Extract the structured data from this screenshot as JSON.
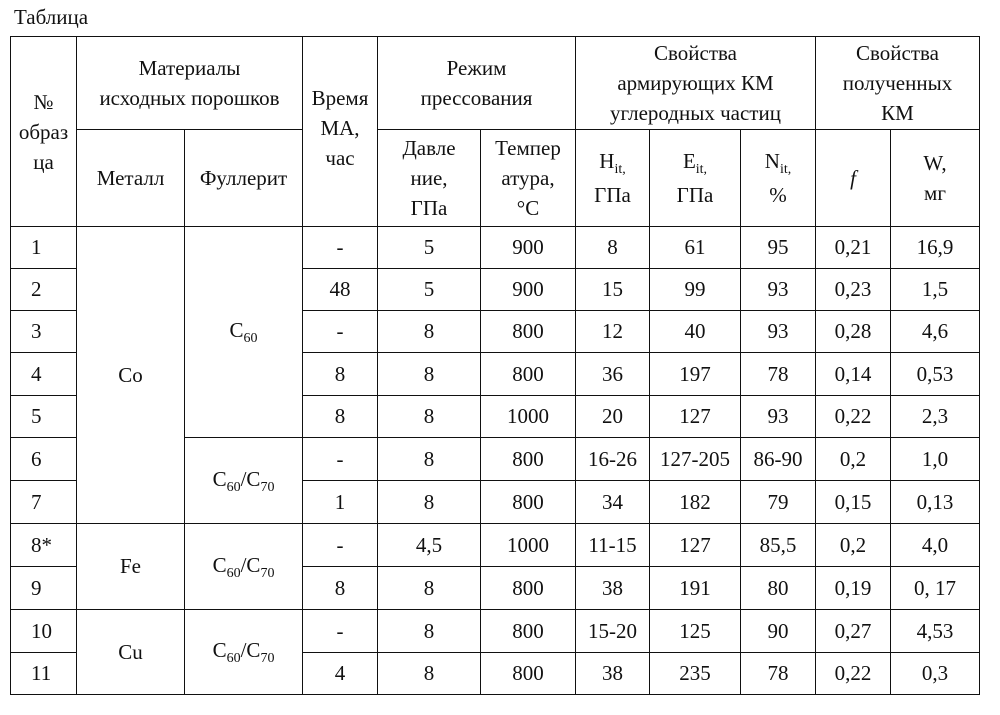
{
  "caption": "Таблица",
  "header": {
    "no": [
      "№",
      "образ",
      "ца"
    ],
    "materials": [
      "Материалы",
      "исходных порошков"
    ],
    "metal": "Металл",
    "fullerite": "Фуллерит",
    "time": [
      "Время",
      "МА,",
      "час"
    ],
    "mode": [
      "Режим",
      "прессования"
    ],
    "pressure": [
      "Давле",
      "ние,",
      "ГПа"
    ],
    "temperature": [
      "Темпер",
      "атура,",
      "°С"
    ],
    "reinforcing": [
      "Свойства",
      "армирующих КМ",
      "углеродных частиц"
    ],
    "obtained": [
      "Свойства",
      "полученных",
      "КМ"
    ],
    "hit": {
      "sym": "H",
      "sub": "it,",
      "unit": "ГПа"
    },
    "eit": {
      "sym": "E",
      "sub": "it,",
      "unit": "ГПа"
    },
    "nit": {
      "sym": "N",
      "sub": "it,",
      "unit": "%"
    },
    "f": "f",
    "w": [
      "W,",
      "мг"
    ]
  },
  "groups": {
    "co": "Co",
    "fe": "Fe",
    "cu": "Cu",
    "c60": {
      "sym": "C",
      "sub": "60"
    },
    "c60c70": {
      "a": "C",
      "a_sub": "60",
      "slash": "/",
      "b": "C",
      "b_sub": "70"
    }
  },
  "rows": [
    {
      "no": "1",
      "time": "-",
      "p": "5",
      "t": "900",
      "h": "8",
      "e": "61",
      "n": "95",
      "f": "0,21",
      "w": "16,9"
    },
    {
      "no": "2",
      "time": "48",
      "p": "5",
      "t": "900",
      "h": "15",
      "e": "99",
      "n": "93",
      "f": "0,23",
      "w": "1,5"
    },
    {
      "no": "3",
      "time": "-",
      "p": "8",
      "t": "800",
      "h": "12",
      "e": "40",
      "n": "93",
      "f": "0,28",
      "w": "4,6"
    },
    {
      "no": "4",
      "time": "8",
      "p": "8",
      "t": "800",
      "h": "36",
      "e": "197",
      "n": "78",
      "f": "0,14",
      "w": "0,53"
    },
    {
      "no": "5",
      "time": "8",
      "p": "8",
      "t": "1000",
      "h": "20",
      "e": "127",
      "n": "93",
      "f": "0,22",
      "w": "2,3"
    },
    {
      "no": "6",
      "time": "-",
      "p": "8",
      "t": "800",
      "h": "16-26",
      "e": "127-205",
      "n": "86-90",
      "f": "0,2",
      "w": "1,0"
    },
    {
      "no": "7",
      "time": "1",
      "p": "8",
      "t": "800",
      "h": "34",
      "e": "182",
      "n": "79",
      "f": "0,15",
      "w": "0,13"
    },
    {
      "no": "8*",
      "time": "-",
      "p": "4,5",
      "t": "1000",
      "h": "11-15",
      "e": "127",
      "n": "85,5",
      "f": "0,2",
      "w": "4,0"
    },
    {
      "no": "9",
      "time": "8",
      "p": "8",
      "t": "800",
      "h": "38",
      "e": "191",
      "n": "80",
      "f": "0,19",
      "w": "0, 17"
    },
    {
      "no": "10",
      "time": "-",
      "p": "8",
      "t": "800",
      "h": "15-20",
      "e": "125",
      "n": "90",
      "f": "0,27",
      "w": "4,53"
    },
    {
      "no": "11",
      "time": "4",
      "p": "8",
      "t": "800",
      "h": "38",
      "e": "235",
      "n": "78",
      "f": "0,22",
      "w": "0,3"
    }
  ]
}
